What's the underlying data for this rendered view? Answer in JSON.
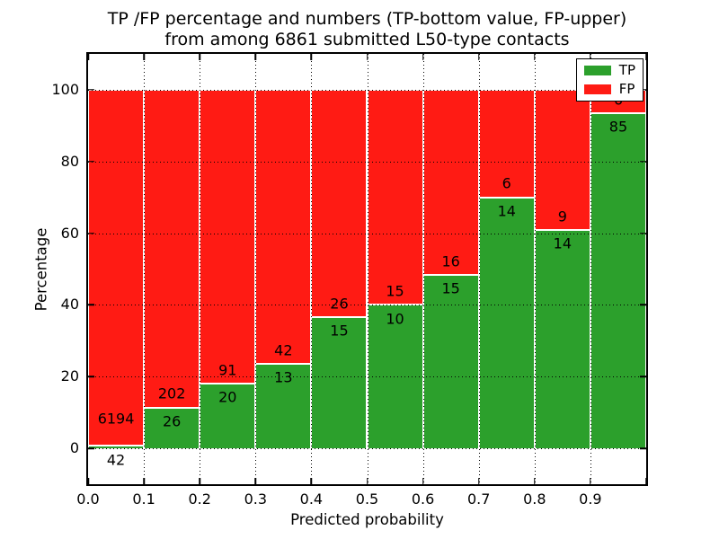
{
  "title": {
    "line1": "TP /FP percentage and numbers (TP-bottom value, FP-upper)",
    "line2": "from among 6861 submitted L50-type contacts"
  },
  "axes": {
    "xlabel": "Predicted probability",
    "ylabel": "Percentage",
    "x_tick_labels": [
      "0.0",
      "0.1",
      "0.2",
      "0.3",
      "0.4",
      "0.5",
      "0.6",
      "0.7",
      "0.8",
      "0.9"
    ],
    "y_tick_labels": [
      "0",
      "20",
      "40",
      "60",
      "80",
      "100"
    ],
    "y_ticks": [
      0,
      20,
      40,
      60,
      80,
      100
    ],
    "xlim": [
      0.0,
      1.0
    ],
    "ylim": [
      -10,
      110
    ]
  },
  "legend": {
    "items": [
      {
        "label": "TP",
        "color": "#2ca02c"
      },
      {
        "label": "FP",
        "color": "#ff1b14"
      }
    ]
  },
  "colors": {
    "tp": "#2ca02c",
    "fp": "#ff1b14",
    "grid": "#000000",
    "text": "#000000",
    "background": "#ffffff"
  },
  "chart_data": {
    "type": "bar",
    "stacked": true,
    "normalized": "each bar scaled to 100%",
    "title": "TP /FP percentage and numbers (TP-bottom value, FP-upper) from among 6861 submitted L50-type contacts",
    "xlabel": "Predicted probability",
    "ylabel": "Percentage",
    "bin_width": 0.1,
    "bin_starts": [
      0.0,
      0.1,
      0.2,
      0.3,
      0.4,
      0.5,
      0.6,
      0.7,
      0.8,
      0.9
    ],
    "bins": [
      "0.0-0.1",
      "0.1-0.2",
      "0.2-0.3",
      "0.3-0.4",
      "0.4-0.5",
      "0.5-0.6",
      "0.6-0.7",
      "0.7-0.8",
      "0.8-0.9",
      "0.9-1.0"
    ],
    "series": [
      {
        "name": "TP",
        "color": "#2ca02c",
        "counts": [
          42,
          26,
          20,
          13,
          15,
          10,
          15,
          14,
          14,
          85
        ]
      },
      {
        "name": "FP",
        "color": "#ff1b14",
        "counts": [
          6194,
          202,
          91,
          42,
          26,
          15,
          16,
          6,
          9,
          6
        ]
      }
    ],
    "tp_percent": [
      0.67,
      11.4,
      18.02,
      23.64,
      36.59,
      40.0,
      48.39,
      70.0,
      60.87,
      93.41
    ],
    "total_contacts": 6861,
    "legend_position": "upper right",
    "grid": "dotted"
  }
}
